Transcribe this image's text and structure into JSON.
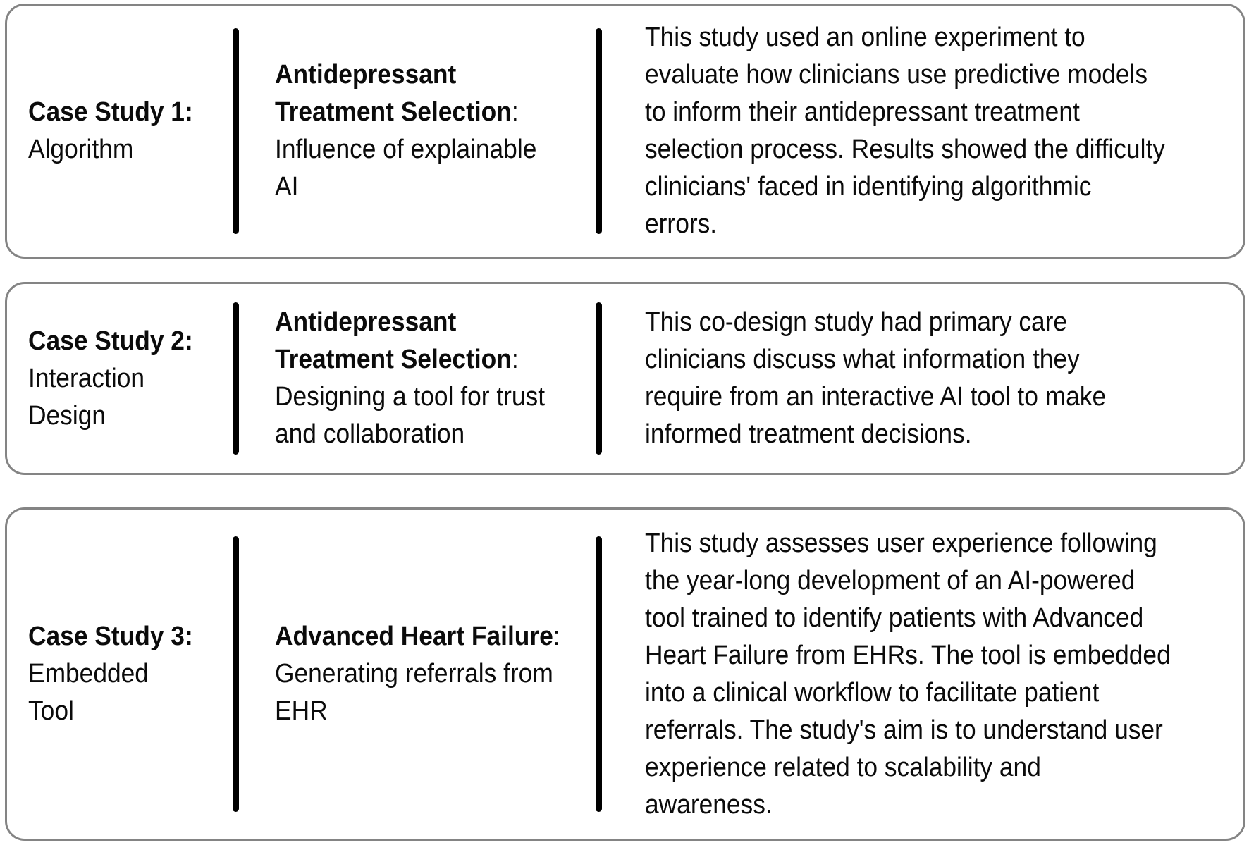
{
  "figure": {
    "type": "case-study-overview-table",
    "colors": {
      "card_border": "#848484",
      "divider": "#000000",
      "text": "#0b0b0b",
      "background": "#ffffff"
    },
    "cards": [
      {
        "label_bold": "Case Study 1:",
        "label_rest": "\nAlgorithm",
        "title_bold": "Antidepressant\nTreatment Selection",
        "title_sep": ":",
        "title_rest": "\nInfluence of explainable\nAI",
        "description": "This study used an online experiment to\nevaluate how clinicians use predictive models\nto inform their antidepressant treatment\nselection process. Results showed the difficulty\nclinicians' faced in identifying algorithmic\nerrors."
      },
      {
        "label_bold": "Case Study 2:",
        "label_rest": "\nInteraction\nDesign",
        "title_bold": "Antidepressant\nTreatment Selection",
        "title_sep": ":",
        "title_rest": "\nDesigning a tool for trust\nand collaboration",
        "description": "This co-design study had primary care\nclinicians discuss what information they\nrequire from an interactive AI tool to make\ninformed treatment decisions."
      },
      {
        "label_bold": "Case Study 3:",
        "label_rest": "\nEmbedded\nTool",
        "title_bold": "Advanced Heart Failure",
        "title_sep": ":",
        "title_rest": "\nGenerating referrals from\nEHR",
        "description": "This study assesses user experience following\nthe year-long development of an AI-powered\ntool trained to identify patients with Advanced\nHeart Failure from EHRs. The tool is embedded\ninto a clinical workflow to facilitate patient\nreferrals. The study's aim is to understand user\nexperience related to scalability and\nawareness."
      }
    ]
  }
}
